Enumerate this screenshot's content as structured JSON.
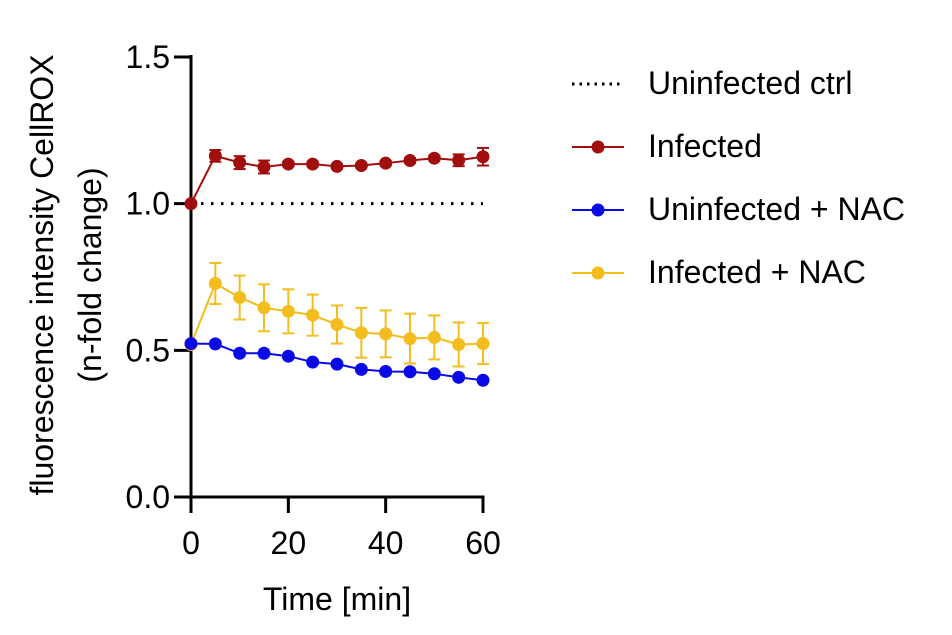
{
  "chart_data": {
    "type": "line",
    "xlabel": "Time [min]",
    "ylabel_line1": "fluorescence intensity CellROX",
    "ylabel_line2": "(n-fold change)",
    "xlim": [
      0,
      60
    ],
    "ylim": [
      0,
      1.5
    ],
    "x_ticks": [
      "0",
      "20",
      "40",
      "60"
    ],
    "y_ticks": [
      "0.0",
      "0.5",
      "1.0",
      "1.5"
    ],
    "x": [
      0,
      5,
      10,
      15,
      20,
      25,
      30,
      35,
      40,
      45,
      50,
      55,
      60
    ],
    "legend_position": "right",
    "series": [
      {
        "name": "Uninfected ctrl",
        "style": "dotted",
        "color": "#000000",
        "values": [
          1.0,
          1.0,
          1.0,
          1.0,
          1.0,
          1.0,
          1.0,
          1.0,
          1.0,
          1.0,
          1.0,
          1.0,
          1.0
        ]
      },
      {
        "name": "Infected",
        "style": "line-marker",
        "color": "#a10e0e",
        "values": [
          1.0,
          1.163,
          1.14,
          1.125,
          1.135,
          1.135,
          1.127,
          1.13,
          1.138,
          1.147,
          1.155,
          1.148,
          1.16
        ],
        "errors": [
          0,
          0.02,
          0.022,
          0.022,
          0.008,
          0.008,
          0.008,
          0.006,
          0.008,
          0.008,
          0.008,
          0.02,
          0.03
        ]
      },
      {
        "name": "Uninfected + NAC",
        "style": "line-marker",
        "color": "#0a0ae6",
        "values": [
          0.523,
          0.522,
          0.49,
          0.49,
          0.48,
          0.46,
          0.453,
          0.435,
          0.428,
          0.427,
          0.42,
          0.408,
          0.398
        ],
        "errors": [
          0,
          0,
          0,
          0,
          0,
          0,
          0,
          0,
          0,
          0,
          0,
          0,
          0
        ]
      },
      {
        "name": "Infected + NAC",
        "style": "line-marker",
        "color": "#f2bd1d",
        "values": [
          0.52,
          0.728,
          0.68,
          0.645,
          0.633,
          0.62,
          0.588,
          0.56,
          0.556,
          0.54,
          0.544,
          0.52,
          0.523
        ],
        "errors": [
          0,
          0.07,
          0.075,
          0.08,
          0.075,
          0.07,
          0.065,
          0.085,
          0.08,
          0.085,
          0.075,
          0.075,
          0.07
        ]
      }
    ]
  }
}
